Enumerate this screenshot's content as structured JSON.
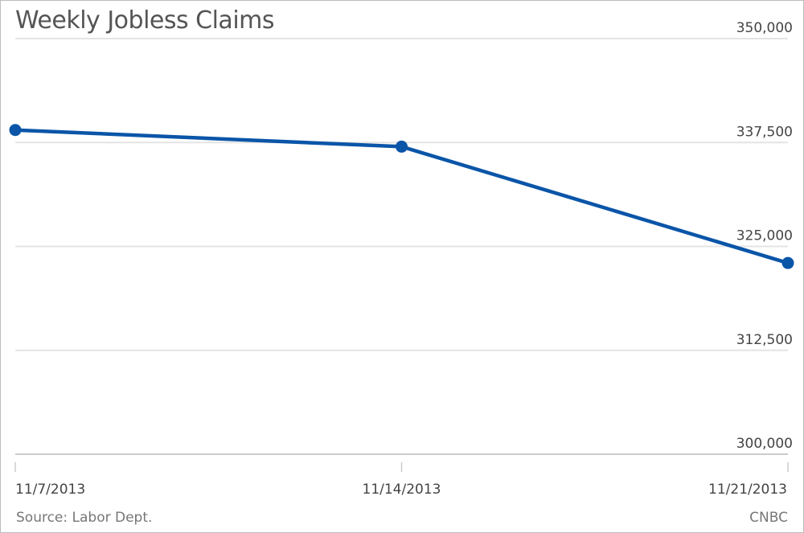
{
  "chart_data": {
    "type": "line",
    "title": "Weekly Jobless Claims",
    "categories": [
      "11/7/2013",
      "11/14/2013",
      "11/21/2013"
    ],
    "series": [
      {
        "values": [
          339000,
          337000,
          323000
        ]
      }
    ],
    "yticks": [
      "350,000",
      "337,500",
      "325,000",
      "312,500",
      "300,000"
    ],
    "ytick_values": [
      350000,
      337500,
      325000,
      312500,
      300000
    ],
    "ylim": [
      300000,
      350000
    ],
    "xlabel": "",
    "ylabel": "",
    "grid": true,
    "y_axis_side": "right",
    "line_color": "#0a55a8"
  },
  "footer": {
    "source": "Source: Labor Dept.",
    "brand": "CNBC"
  }
}
